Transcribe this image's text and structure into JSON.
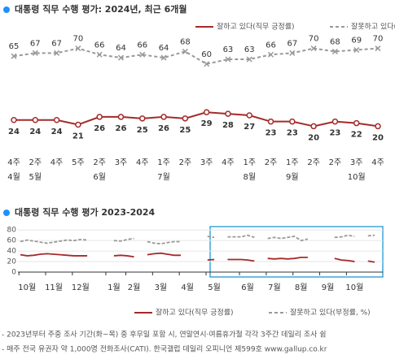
{
  "chart_data": [
    {
      "type": "line",
      "title": "대통령 직무 수행 평가: 2024년, 최근 6개월",
      "categories": [
        "4주",
        "2주",
        "4주",
        "5주",
        "2주",
        "3주",
        "4주",
        "1주",
        "2주",
        "3주",
        "4주",
        "1주",
        "2주",
        "1주",
        "2주",
        "2주",
        "3주",
        "4주"
      ],
      "groups": [
        "4월",
        "5월",
        null,
        null,
        "6월",
        null,
        null,
        "7월",
        null,
        null,
        null,
        "8월",
        null,
        "9월",
        null,
        null,
        "10월",
        null
      ],
      "ylim": [
        15,
        75
      ],
      "series": [
        {
          "name": "잘하고 있다(직무 긍정률)",
          "color": "#a52a2a",
          "values": [
            24,
            24,
            24,
            21,
            26,
            26,
            25,
            26,
            25,
            29,
            28,
            27,
            23,
            23,
            20,
            23,
            22,
            20
          ]
        },
        {
          "name": "잘못하고 있다(부정률, %)",
          "color": "#999999",
          "values": [
            65,
            67,
            67,
            70,
            66,
            64,
            66,
            64,
            68,
            60,
            63,
            63,
            66,
            67,
            70,
            68,
            69,
            70
          ]
        }
      ]
    },
    {
      "type": "line",
      "title": "대통령 직무 수행 평가 2023-2024",
      "x": [
        0,
        1,
        2,
        3,
        4,
        5,
        6,
        7,
        8,
        9,
        10,
        11,
        12,
        13,
        14,
        15,
        16,
        17,
        18,
        19,
        20,
        21,
        22,
        23,
        24,
        25,
        26,
        27,
        28,
        29,
        30,
        31,
        32,
        33,
        34,
        35,
        36,
        37,
        38,
        39,
        40,
        41,
        42,
        43,
        44,
        45,
        46,
        47,
        48,
        49,
        50,
        51,
        52,
        53
      ],
      "xlim": [
        0,
        53
      ],
      "xticks": [
        {
          "value": 1,
          "label": "10월"
        },
        {
          "value": 5,
          "label": "11월"
        },
        {
          "value": 9,
          "label": "12월"
        },
        {
          "value": 14,
          "label": "1월"
        },
        {
          "value": 17,
          "label": "2월"
        },
        {
          "value": 21,
          "label": "3월"
        },
        {
          "value": 25,
          "label": "4월"
        },
        {
          "value": 29,
          "label": "5월"
        },
        {
          "value": 34,
          "label": "6월"
        },
        {
          "value": 38,
          "label": "7월"
        },
        {
          "value": 42,
          "label": "8월"
        },
        {
          "value": 46,
          "label": "9월"
        },
        {
          "value": 50,
          "label": "10월"
        }
      ],
      "ylim": [
        0,
        85
      ],
      "yticks": [
        0,
        20,
        40,
        60,
        80
      ],
      "grid": true,
      "series": [
        {
          "name": "잘하고 있다(직무 긍정률)",
          "color": "#a52a2a",
          "values": [
            33,
            31,
            32,
            34,
            35,
            34,
            33,
            32,
            31,
            31,
            31,
            null,
            null,
            null,
            31,
            32,
            31,
            29,
            null,
            33,
            35,
            36,
            34,
            32,
            32,
            null,
            null,
            null,
            23,
            24,
            null,
            24,
            24,
            24,
            23,
            21,
            null,
            26,
            25,
            26,
            25,
            26,
            28,
            28,
            null,
            null,
            null,
            26,
            23,
            22,
            20,
            null,
            21,
            19
          ]
        },
        {
          "name": "잘못하고 있다(부정률, %)",
          "color": "#999999",
          "values": [
            58,
            61,
            59,
            57,
            55,
            57,
            59,
            61,
            60,
            62,
            61,
            null,
            null,
            null,
            60,
            59,
            62,
            64,
            null,
            58,
            55,
            54,
            56,
            58,
            58,
            null,
            null,
            null,
            68,
            66,
            null,
            67,
            67,
            67,
            70,
            66,
            null,
            64,
            66,
            64,
            66,
            68,
            60,
            63,
            null,
            null,
            null,
            66,
            67,
            70,
            68,
            null,
            69,
            70
          ]
        }
      ]
    }
  ],
  "footnotes": [
    "- 2023년부터 주중 조사 기간(화~목) 중 후무일 포함 시, 연말연시·여름휴가철 각각 3주간 데일리 조사 쉼",
    "- 매주 전국 유권자 약 1,000명 전화조사(CATI). 한국갤럽 데일리 오피니언 제599호 www.gallup.co.kr"
  ]
}
